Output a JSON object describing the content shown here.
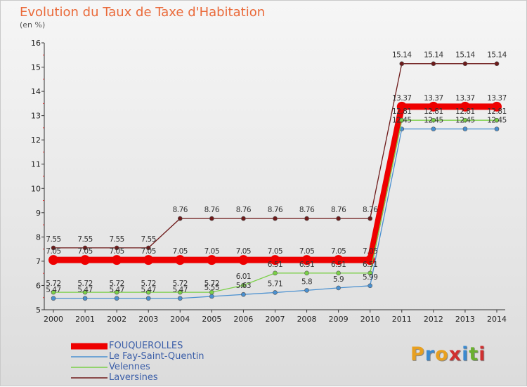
{
  "header": {
    "title": "Evolution du Taux de Taxe d'Habitation",
    "subtitle": "(en %)"
  },
  "logo": {
    "text": "Proxiti"
  },
  "chart_data": {
    "type": "line",
    "title": "Evolution du Taux de Taxe d'Habitation",
    "subtitle": "(en %)",
    "xlabel": "",
    "ylabel": "",
    "x": [
      2000,
      2001,
      2002,
      2003,
      2004,
      2005,
      2006,
      2007,
      2008,
      2009,
      2010,
      2011,
      2012,
      2013,
      2014
    ],
    "ylim": [
      5,
      16
    ],
    "yticks": [
      5,
      6,
      7,
      8,
      9,
      10,
      11,
      12,
      13,
      14,
      15,
      16
    ],
    "grid": false,
    "legend_position": "bottom-left",
    "series": [
      {
        "name": "FOUQUEROLLES",
        "color": "#ee0000",
        "values": [
          7.05,
          7.05,
          7.05,
          7.05,
          7.05,
          7.05,
          7.05,
          7.05,
          7.05,
          7.05,
          7.05,
          13.37,
          13.37,
          13.37,
          13.37
        ],
        "labels": [
          "7.05",
          "7.05",
          "7.05",
          "7.05",
          "7.05",
          "7.05",
          "7.05",
          "7.05",
          "7.05",
          "7.05",
          "7.05",
          "13.37",
          "13.37",
          "13.37",
          "13.37"
        ]
      },
      {
        "name": "Le Fay-Saint-Quentin",
        "color": "#4a90d0",
        "values": [
          5.47,
          5.47,
          5.47,
          5.47,
          5.47,
          5.55,
          5.63,
          5.71,
          5.8,
          5.9,
          5.99,
          12.45,
          12.45,
          12.45,
          12.45
        ],
        "labels": [
          "5.47",
          "5.47",
          "5.47",
          "5.47",
          "5.47",
          "5.55",
          "5.63",
          "5.71",
          "5.8",
          "5.9",
          "5.99",
          "12.45",
          "12.45",
          "12.45",
          "12.45"
        ]
      },
      {
        "name": "Velennes",
        "color": "#7ad048",
        "values": [
          5.72,
          5.72,
          5.72,
          5.72,
          5.72,
          5.72,
          6.01,
          6.51,
          6.51,
          6.51,
          6.51,
          12.81,
          12.81,
          12.81,
          12.81
        ],
        "labels": [
          "5.72",
          "5.72",
          "5.72",
          "5.72",
          "5.72",
          "5.72",
          "6.01",
          "6.51",
          "6.51",
          "6.51",
          "6.51",
          "12.81",
          "12.81",
          "12.81",
          "12.81"
        ]
      },
      {
        "name": "Laversines",
        "color": "#6e1a1a",
        "values": [
          7.55,
          7.55,
          7.55,
          7.55,
          8.76,
          8.76,
          8.76,
          8.76,
          8.76,
          8.76,
          8.76,
          15.14,
          15.14,
          15.14,
          15.14
        ],
        "labels": [
          "7.55",
          "7.55",
          "7.55",
          "7.55",
          "8.76",
          "8.76",
          "8.76",
          "8.76",
          "8.76",
          "8.76",
          "8.76",
          "15.14",
          "15.14",
          "15.14",
          "15.14"
        ]
      }
    ]
  }
}
